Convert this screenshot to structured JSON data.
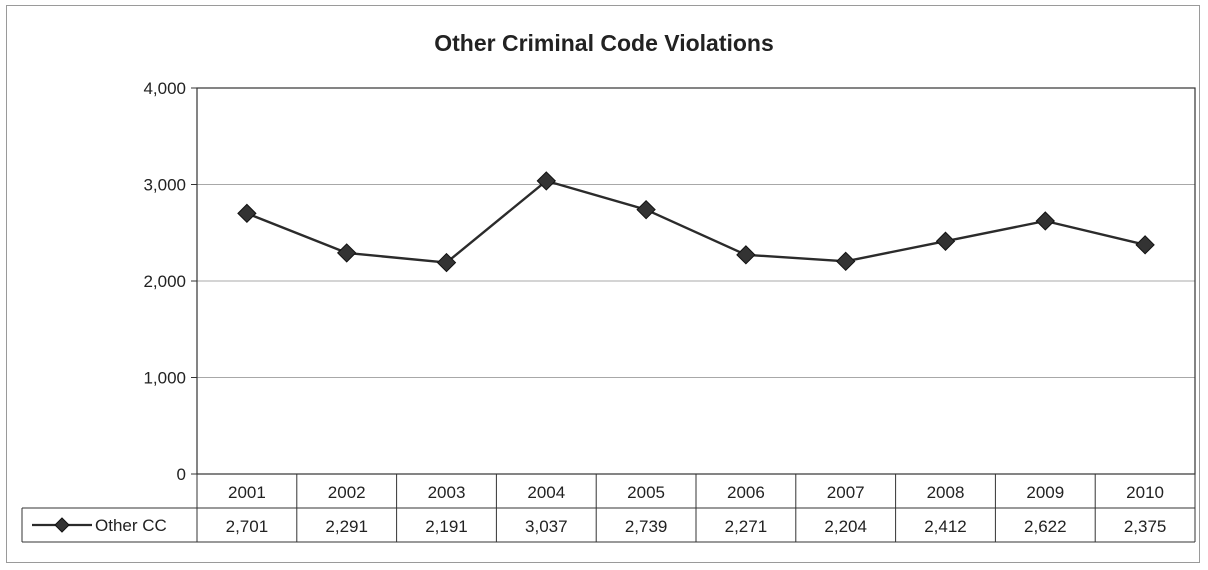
{
  "chart_data": {
    "type": "line",
    "title": "Other Criminal Code Violations",
    "xlabel": "",
    "ylabel": "",
    "categories": [
      "2001",
      "2002",
      "2003",
      "2004",
      "2005",
      "2006",
      "2007",
      "2008",
      "2009",
      "2010"
    ],
    "series": [
      {
        "name": "Other CC",
        "values": [
          2701,
          2291,
          2191,
          3037,
          2739,
          2271,
          2204,
          2412,
          2622,
          2375
        ],
        "display_values": [
          "2,701",
          "2,291",
          "2,191",
          "3,037",
          "2,739",
          "2,271",
          "2,204",
          "2,412",
          "2,622",
          "2,375"
        ]
      }
    ],
    "ylim": [
      0,
      4000
    ],
    "yticks": [
      0,
      1000,
      2000,
      3000,
      4000
    ],
    "ytick_labels": [
      "0",
      "1,000",
      "2,000",
      "3,000",
      "4,000"
    ],
    "grid": true,
    "legend": "data-table-left",
    "marker": "diamond",
    "line_color": "#2b2b2b"
  }
}
